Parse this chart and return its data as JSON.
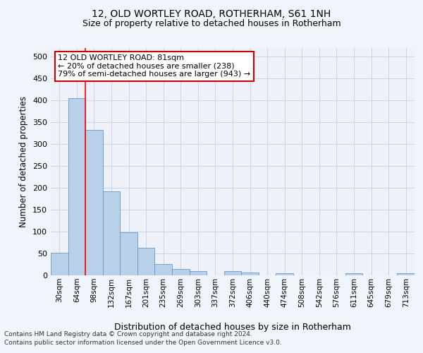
{
  "title": "12, OLD WORTLEY ROAD, ROTHERHAM, S61 1NH",
  "subtitle": "Size of property relative to detached houses in Rotherham",
  "xlabel": "Distribution of detached houses by size in Rotherham",
  "ylabel": "Number of detached properties",
  "categories": [
    "30sqm",
    "64sqm",
    "98sqm",
    "132sqm",
    "167sqm",
    "201sqm",
    "235sqm",
    "269sqm",
    "303sqm",
    "337sqm",
    "372sqm",
    "406sqm",
    "440sqm",
    "474sqm",
    "508sqm",
    "542sqm",
    "576sqm",
    "611sqm",
    "645sqm",
    "679sqm",
    "713sqm"
  ],
  "values": [
    52,
    405,
    332,
    192,
    99,
    63,
    25,
    14,
    10,
    0,
    10,
    6,
    0,
    5,
    0,
    0,
    0,
    5,
    0,
    0,
    5
  ],
  "bar_color": "#b8d0e8",
  "bar_edge_color": "#6699cc",
  "grid_color": "#c8d4e8",
  "background_color": "#eef2f8",
  "fig_background": "#f0f4fb",
  "red_line_x": 1.5,
  "annotation_text": "12 OLD WORTLEY ROAD: 81sqm\n← 20% of detached houses are smaller (238)\n79% of semi-detached houses are larger (943) →",
  "annotation_box_color": "#ffffff",
  "annotation_box_edge": "#cc0000",
  "ylim": [
    0,
    520
  ],
  "yticks": [
    0,
    50,
    100,
    150,
    200,
    250,
    300,
    350,
    400,
    450,
    500
  ],
  "footer1": "Contains HM Land Registry data © Crown copyright and database right 2024.",
  "footer2": "Contains public sector information licensed under the Open Government Licence v3.0."
}
